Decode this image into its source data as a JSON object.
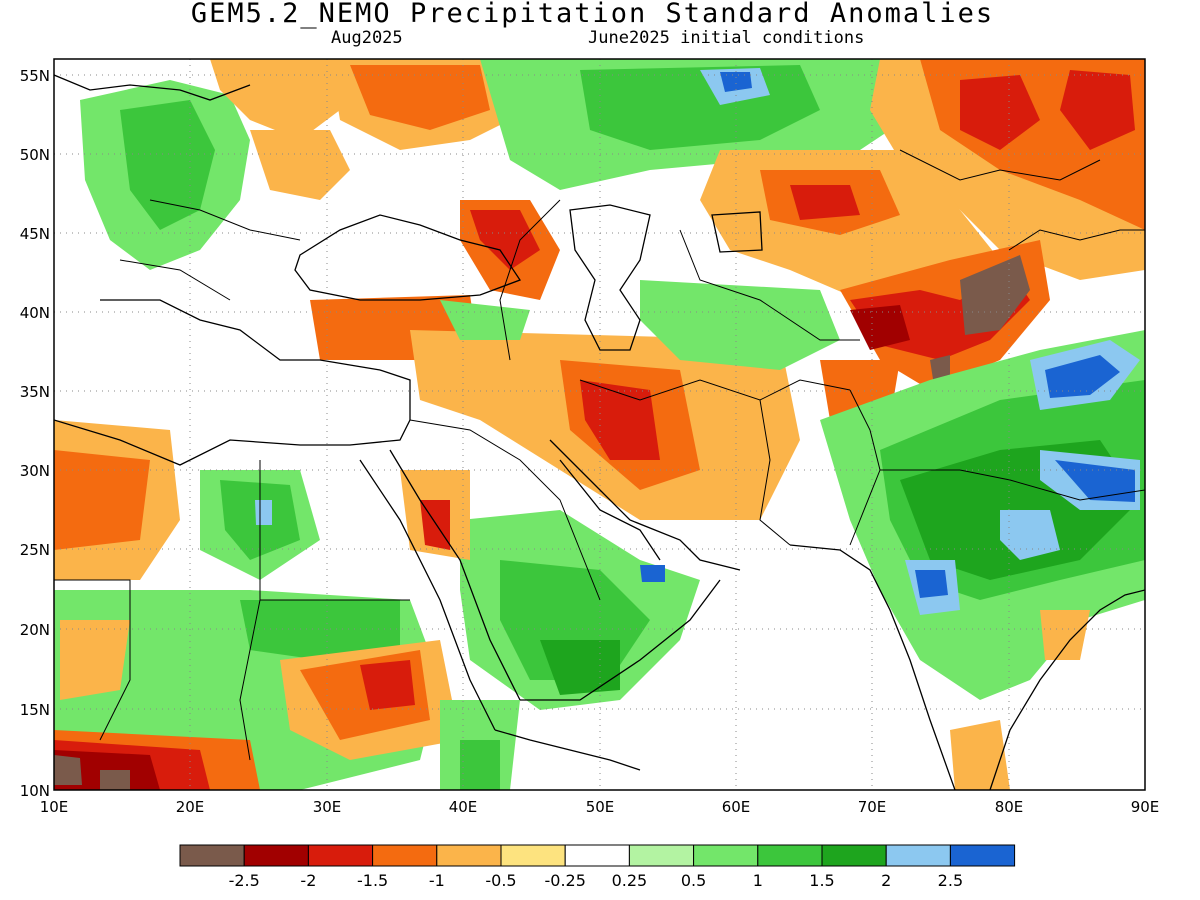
{
  "title": "GEM5.2_NEMO Precipitation Standard Anomalies",
  "subtitle_left": "Aug2025",
  "subtitle_right": "June2025 initial conditions",
  "lat_labels": [
    "55N",
    "50N",
    "45N",
    "40N",
    "35N",
    "30N",
    "25N",
    "20N",
    "15N",
    "10N"
  ],
  "lon_labels": [
    "10E",
    "20E",
    "30E",
    "40E",
    "50E",
    "60E",
    "70E",
    "80E",
    "90E"
  ],
  "colorbar": {
    "colors": [
      "#7a5a4b",
      "#a10000",
      "#d81c0c",
      "#f46b10",
      "#fbb44a",
      "#fde37f",
      "#ffffff",
      "#b3f3a2",
      "#73e66a",
      "#3cc63c",
      "#1ea51e",
      "#8cc8f0",
      "#1a64d2"
    ],
    "labels": [
      "-2.5",
      "-2",
      "-1.5",
      "-1",
      "-0.5",
      "-0.25",
      "0.25",
      "0.5",
      "1",
      "1.5",
      "2",
      "2.5"
    ]
  }
}
